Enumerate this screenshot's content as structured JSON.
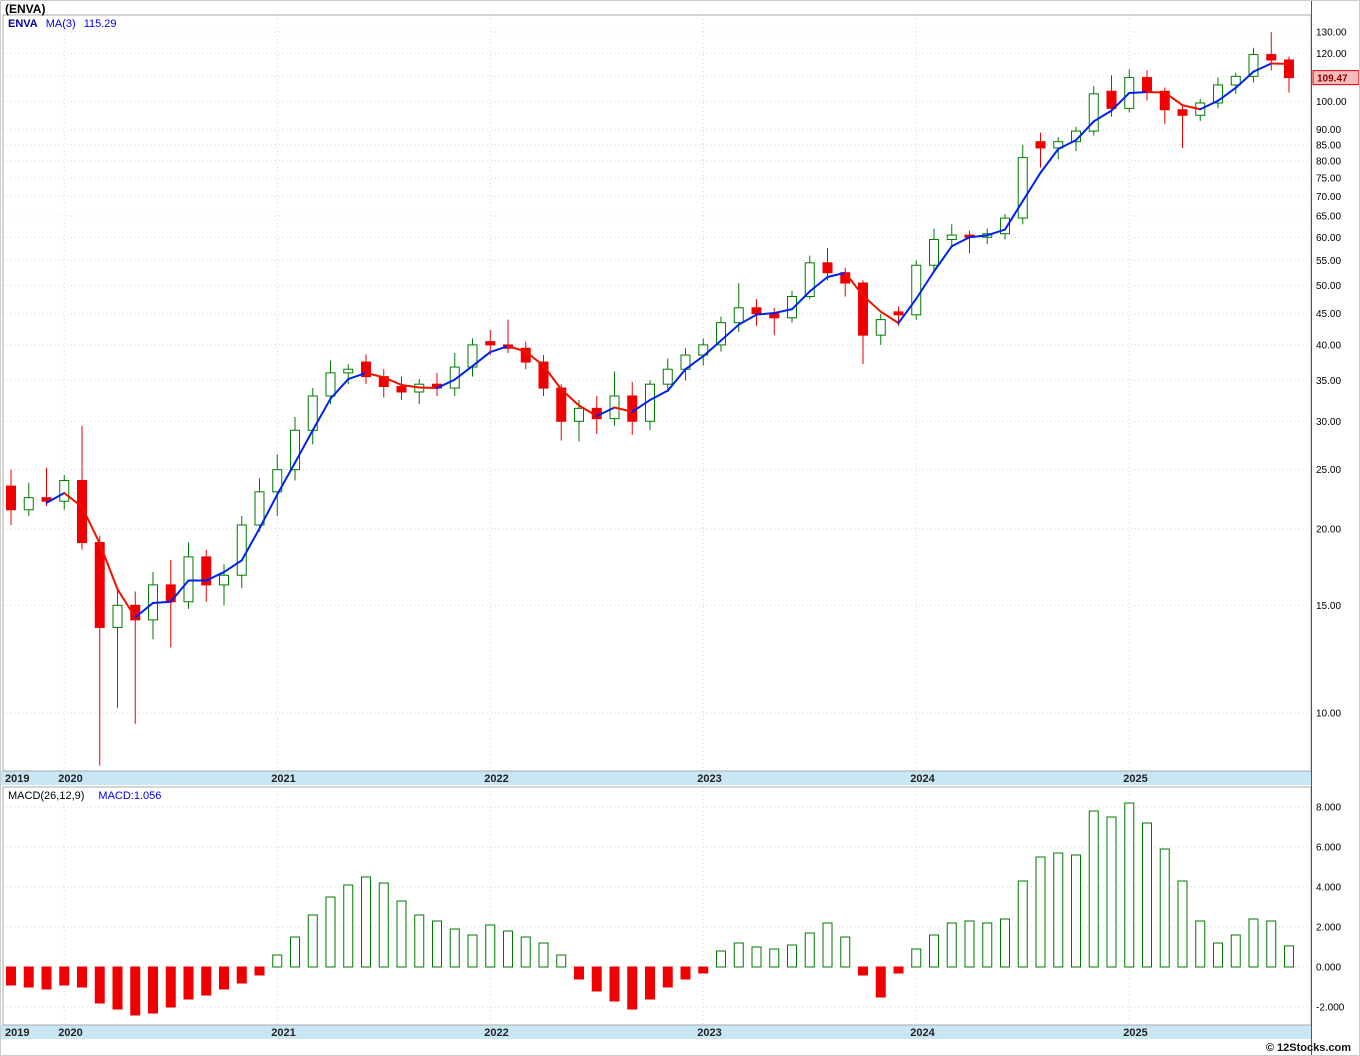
{
  "header": {
    "title": "(ENVA)"
  },
  "legend": {
    "symbol": "ENVA",
    "ma_label": "MA(3)",
    "ma_value": "115.29"
  },
  "macd_legend": {
    "label": "MACD(26,12,9)",
    "value_label": "MACD:1.056"
  },
  "price_badge": "109.47",
  "copyright": "© 12Stocks.com",
  "colors": {
    "up": "#007a00",
    "down": "#ee0000",
    "ma_up": "#0022ee",
    "ma_down": "#ee1100",
    "band": "#c9e6f5",
    "grid": "#d9d9d9",
    "border": "#aaaaaa",
    "axis_text": "#000000",
    "year_text": "#222222",
    "badge_bg": "#f6bcbc",
    "badge_border": "#cc0000",
    "badge_text": "#8b0000"
  },
  "chart_data": {
    "type": "candlestick+macd_histogram",
    "symbol": "ENVA",
    "periodicity": "monthly",
    "start_month": "2019-10",
    "log_scale": true,
    "price_axis_ticks": [
      130,
      120,
      110,
      100,
      90,
      85,
      80,
      75,
      70,
      65,
      60,
      55,
      50,
      45,
      40,
      35,
      30,
      25,
      20,
      15,
      10
    ],
    "macd_axis_ticks": [
      8,
      6,
      4,
      2,
      0,
      -2
    ],
    "ma_period": 3,
    "ma_last_value": 115.29,
    "last_price": 109.47,
    "macd_last_value": 1.056,
    "year_boundaries": [
      {
        "label": "2019",
        "index": 0
      },
      {
        "label": "2020",
        "index": 3
      },
      {
        "label": "2021",
        "index": 15
      },
      {
        "label": "2022",
        "index": 27
      },
      {
        "label": "2023",
        "index": 39
      },
      {
        "label": "2024",
        "index": 51
      },
      {
        "label": "2025",
        "index": 63
      }
    ],
    "candles_ohlc": [
      [
        23.5,
        25.0,
        20.3,
        21.5
      ],
      [
        21.5,
        23.8,
        21.0,
        22.5
      ],
      [
        22.5,
        25.2,
        21.8,
        22.2
      ],
      [
        22.2,
        24.5,
        21.5,
        24.0
      ],
      [
        24.0,
        29.5,
        18.5,
        19.0
      ],
      [
        19.0,
        19.5,
        8.2,
        13.8
      ],
      [
        13.8,
        16.0,
        10.2,
        15.0
      ],
      [
        15.0,
        15.8,
        9.6,
        14.2
      ],
      [
        14.2,
        17.0,
        13.2,
        16.2
      ],
      [
        16.2,
        17.8,
        12.8,
        15.2
      ],
      [
        15.2,
        19.0,
        14.8,
        18.0
      ],
      [
        18.0,
        18.5,
        15.2,
        16.2
      ],
      [
        16.2,
        17.5,
        15.0,
        16.8
      ],
      [
        16.8,
        21.0,
        16.0,
        20.3
      ],
      [
        20.3,
        24.2,
        19.8,
        23.0
      ],
      [
        23.0,
        26.5,
        21.0,
        25.0
      ],
      [
        25.0,
        30.5,
        24.0,
        29.0
      ],
      [
        29.0,
        34.0,
        27.5,
        33.0
      ],
      [
        33.0,
        37.7,
        32.0,
        36.0
      ],
      [
        36.0,
        37.2,
        34.5,
        36.5
      ],
      [
        37.5,
        38.6,
        34.5,
        35.5
      ],
      [
        35.5,
        36.5,
        32.8,
        34.2
      ],
      [
        34.2,
        35.5,
        32.5,
        33.5
      ],
      [
        33.5,
        35.2,
        32.0,
        34.5
      ],
      [
        34.5,
        36.0,
        33.0,
        34.0
      ],
      [
        34.0,
        38.8,
        33.0,
        36.8
      ],
      [
        36.8,
        41.0,
        35.5,
        40.0
      ],
      [
        40.5,
        42.3,
        38.5,
        40.0
      ],
      [
        40.0,
        44.0,
        38.8,
        39.5
      ],
      [
        39.5,
        40.5,
        36.5,
        37.5
      ],
      [
        37.5,
        38.5,
        33.0,
        34.0
      ],
      [
        34.0,
        34.5,
        27.9,
        30.0
      ],
      [
        30.0,
        32.5,
        27.8,
        31.5
      ],
      [
        31.5,
        33.0,
        28.6,
        30.3
      ],
      [
        30.3,
        36.2,
        29.5,
        33.0
      ],
      [
        33.0,
        34.8,
        28.5,
        30.0
      ],
      [
        30.0,
        35.0,
        29.0,
        34.5
      ],
      [
        34.5,
        38.0,
        33.5,
        36.5
      ],
      [
        36.5,
        39.5,
        35.0,
        38.5
      ],
      [
        38.5,
        41.0,
        37.0,
        40.0
      ],
      [
        40.0,
        44.5,
        39.0,
        43.5
      ],
      [
        43.5,
        50.5,
        42.0,
        46.0
      ],
      [
        46.0,
        47.5,
        43.0,
        45.0
      ],
      [
        45.0,
        46.0,
        41.5,
        44.3
      ],
      [
        44.3,
        49.0,
        43.5,
        48.0
      ],
      [
        48.0,
        56.0,
        47.5,
        54.5
      ],
      [
        54.5,
        57.6,
        51.0,
        52.5
      ],
      [
        52.5,
        53.5,
        48.0,
        50.5
      ],
      [
        50.5,
        51.0,
        37.2,
        41.5
      ],
      [
        41.5,
        45.0,
        40.0,
        44.0
      ],
      [
        45.3,
        46.2,
        43.0,
        44.8
      ],
      [
        44.8,
        55.0,
        44.0,
        54.0
      ],
      [
        54.0,
        62.0,
        53.0,
        59.5
      ],
      [
        59.5,
        63.0,
        58.0,
        60.5
      ],
      [
        60.5,
        61.5,
        56.5,
        60.0
      ],
      [
        60.0,
        62.0,
        58.5,
        60.8
      ],
      [
        60.8,
        65.5,
        59.5,
        64.5
      ],
      [
        64.5,
        85.0,
        63.0,
        81.0
      ],
      [
        86.0,
        89.0,
        78.0,
        84.0
      ],
      [
        84.0,
        87.5,
        80.5,
        86.0
      ],
      [
        86.0,
        91.0,
        83.0,
        89.5
      ],
      [
        89.5,
        106.0,
        88.0,
        103.0
      ],
      [
        104.0,
        110.5,
        94.5,
        97.5
      ],
      [
        97.5,
        113.0,
        96.0,
        109.5
      ],
      [
        109.5,
        112.5,
        100.5,
        104.0
      ],
      [
        104.0,
        105.5,
        92.0,
        97.0
      ],
      [
        97.0,
        98.5,
        84.0,
        95.0
      ],
      [
        95.0,
        101.0,
        93.0,
        99.5
      ],
      [
        99.5,
        109.5,
        97.5,
        106.5
      ],
      [
        106.5,
        111.5,
        103.0,
        110.0
      ],
      [
        110.0,
        122.5,
        107.5,
        119.4
      ],
      [
        119.4,
        129.9,
        112.5,
        117.0
      ],
      [
        117.0,
        118.5,
        103.5,
        109.47
      ]
    ],
    "macd_histogram": [
      -0.9,
      -1.0,
      -1.1,
      -0.9,
      -1.0,
      -1.8,
      -2.1,
      -2.4,
      -2.3,
      -2.0,
      -1.6,
      -1.4,
      -1.1,
      -0.8,
      -0.4,
      0.6,
      1.5,
      2.6,
      3.5,
      4.1,
      4.5,
      4.2,
      3.3,
      2.6,
      2.3,
      1.9,
      1.6,
      2.1,
      1.8,
      1.5,
      1.2,
      0.6,
      -0.6,
      -1.2,
      -1.7,
      -2.1,
      -1.6,
      -1.0,
      -0.6,
      -0.3,
      0.8,
      1.2,
      1.0,
      0.9,
      1.1,
      1.7,
      2.2,
      1.5,
      -0.4,
      -1.5,
      -0.3,
      0.9,
      1.6,
      2.2,
      2.3,
      2.2,
      2.4,
      4.3,
      5.5,
      5.7,
      5.6,
      7.8,
      7.5,
      8.2,
      7.2,
      5.9,
      4.3,
      2.3,
      1.2,
      1.6,
      2.4,
      2.3,
      1.056
    ]
  }
}
